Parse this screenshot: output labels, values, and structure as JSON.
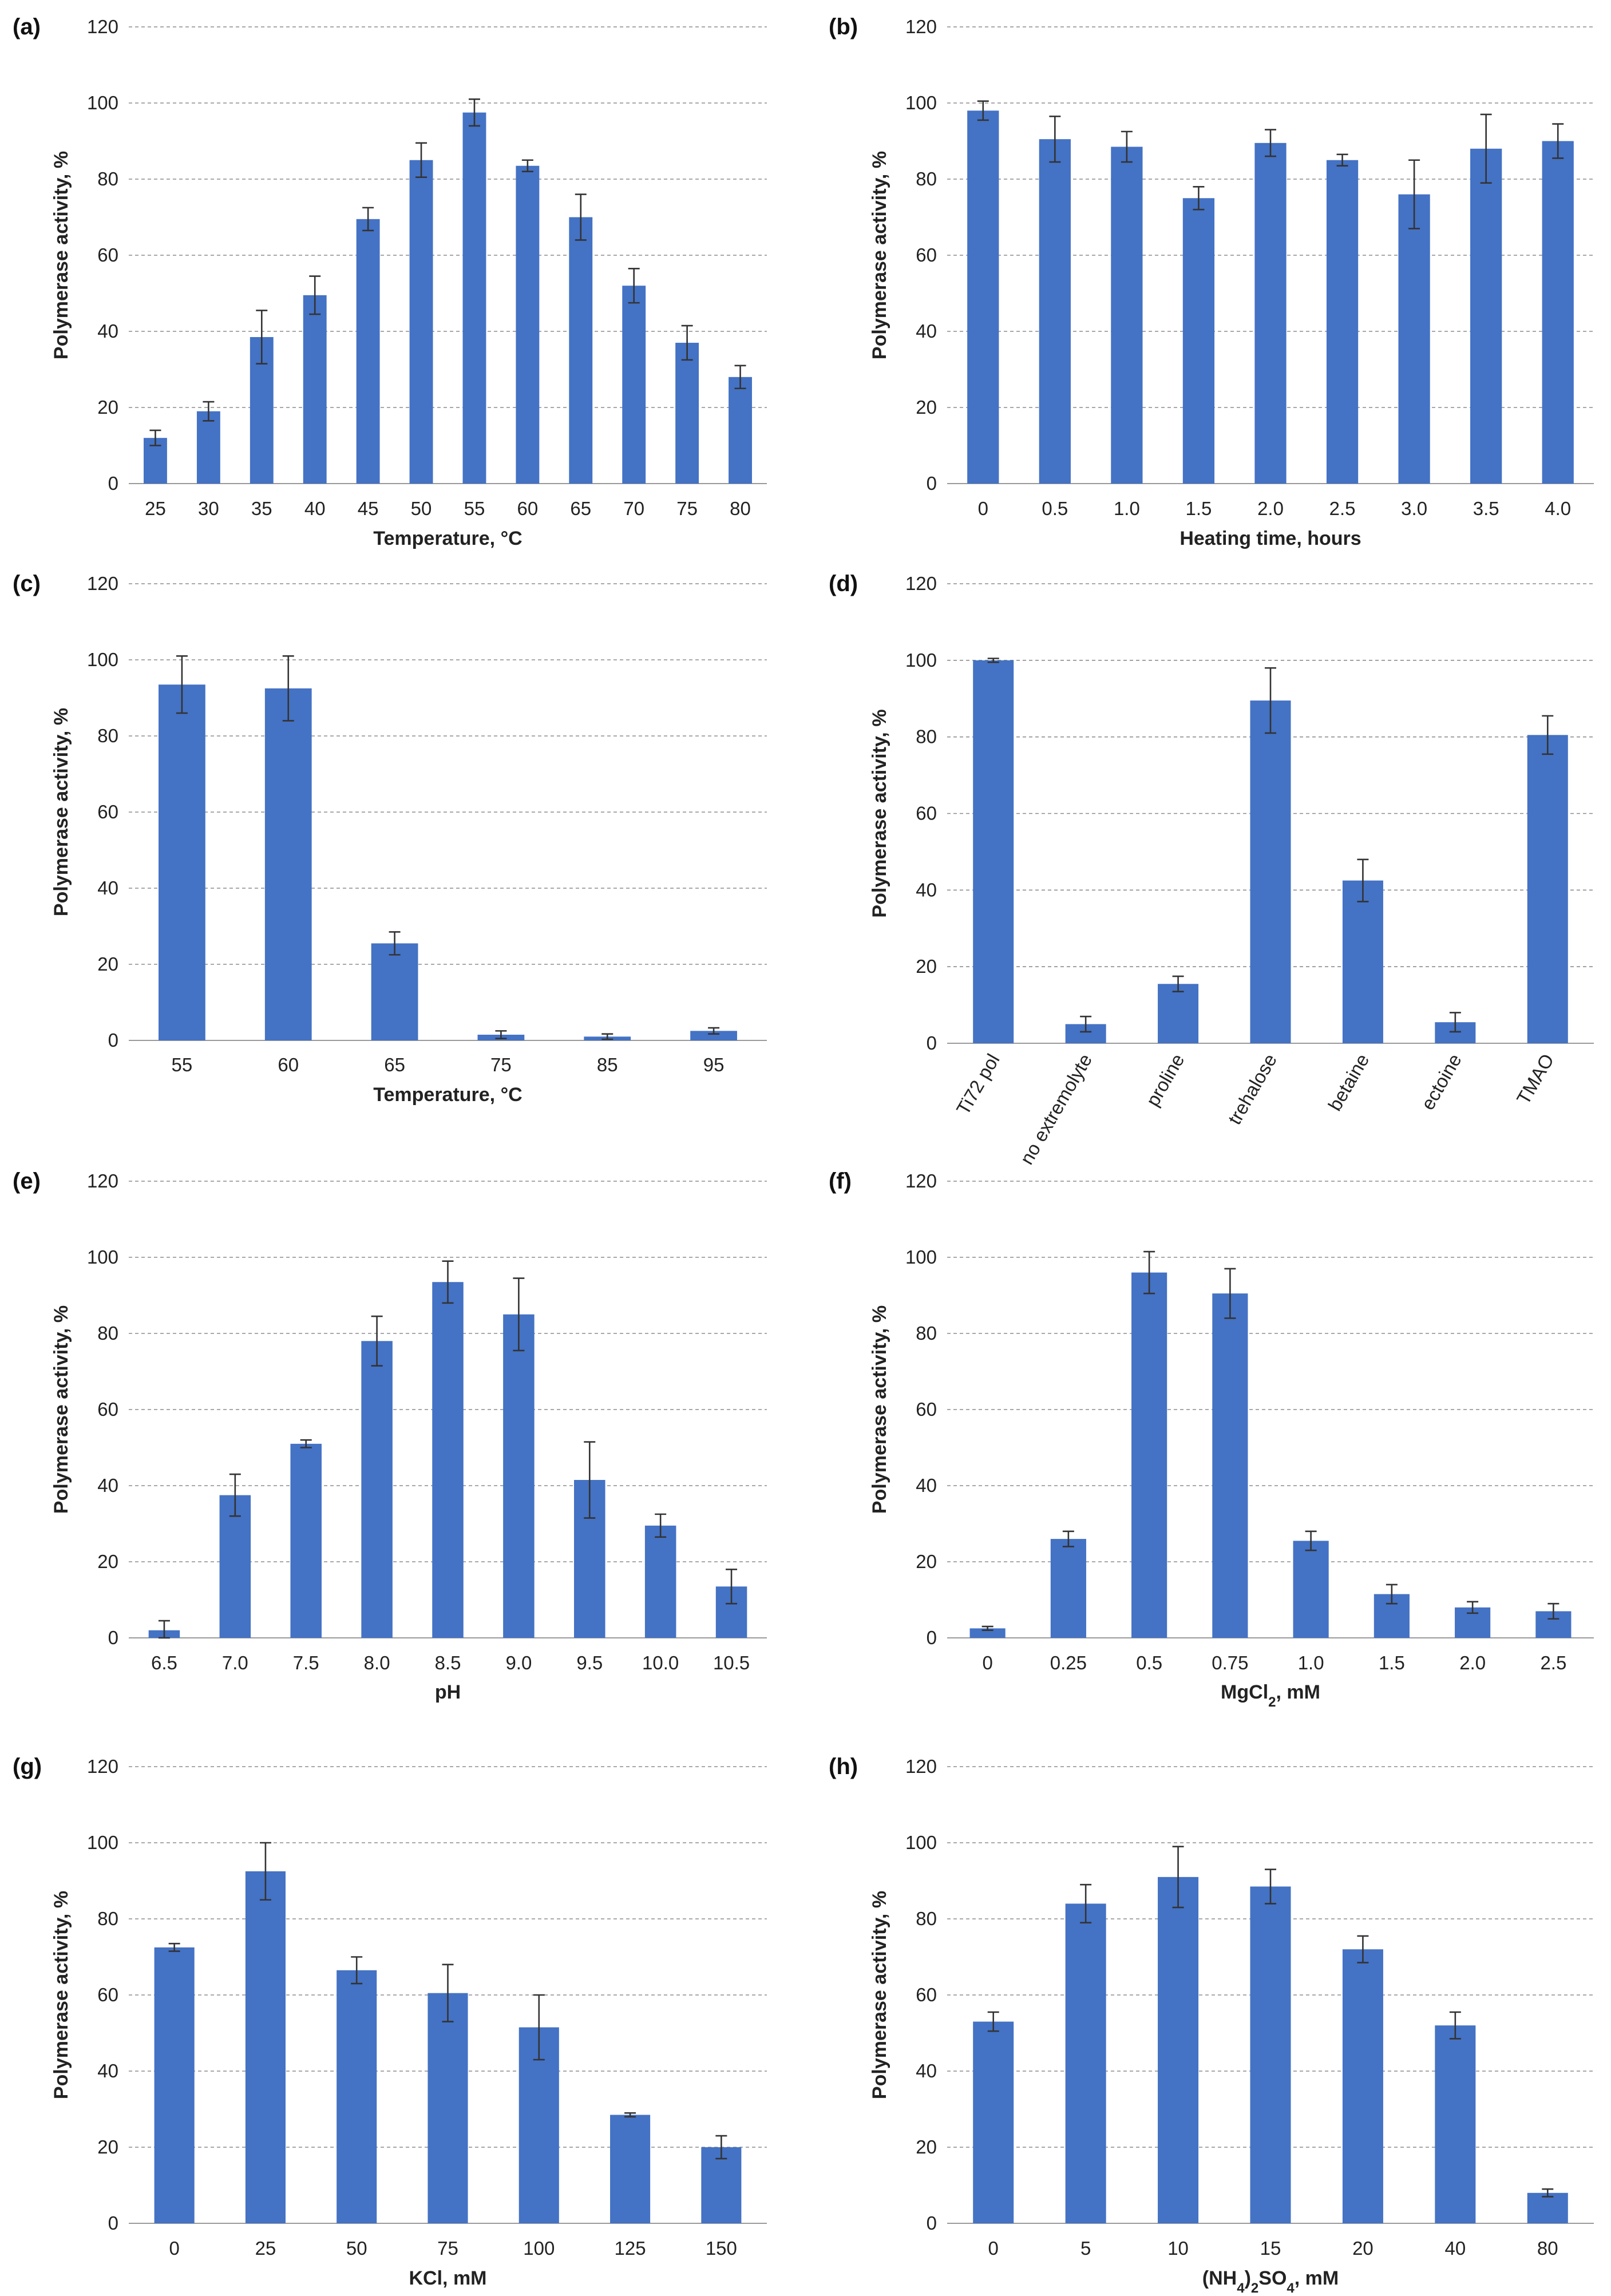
{
  "colors": {
    "bar": "#4472c4",
    "error": "#333333",
    "grid": "#8c8c8c"
  },
  "chart_data": [
    {
      "panel": "(a)",
      "type": "bar",
      "categories": [
        "25",
        "30",
        "35",
        "40",
        "45",
        "50",
        "55",
        "60",
        "65",
        "70",
        "75",
        "80"
      ],
      "values": [
        12,
        19,
        38.5,
        49.5,
        69.5,
        85,
        97.5,
        83.5,
        70,
        52,
        37,
        28
      ],
      "errors": [
        2,
        2.5,
        7,
        5,
        3,
        4.5,
        3.5,
        1.5,
        6,
        4.5,
        4.5,
        3
      ],
      "xlabel": "Temperature, °C",
      "ylabel": "Polymerase activity, %",
      "yticks": [
        "0",
        "20",
        "40",
        "60",
        "80",
        "100",
        "120"
      ],
      "ylim": [
        0,
        120
      ],
      "grid": true
    },
    {
      "panel": "(b)",
      "type": "bar",
      "categories": [
        "0",
        "0.5",
        "1.0",
        "1.5",
        "2.0",
        "2.5",
        "3.0",
        "3.5",
        "4.0"
      ],
      "values": [
        98,
        90.5,
        88.5,
        75,
        89.5,
        85,
        76,
        88,
        90
      ],
      "errors": [
        2.5,
        6,
        4,
        3,
        3.5,
        1.5,
        9,
        9,
        4.5
      ],
      "xlabel": "Heating time, hours",
      "ylabel": "Polymerase activity, %",
      "yticks": [
        "0",
        "20",
        "40",
        "60",
        "80",
        "100",
        "120"
      ],
      "ylim": [
        0,
        120
      ],
      "grid": true
    },
    {
      "panel": "(c)",
      "type": "bar",
      "categories": [
        "55",
        "60",
        "65",
        "75",
        "85",
        "95"
      ],
      "values": [
        93.5,
        92.5,
        25.5,
        1.5,
        1,
        2.5
      ],
      "errors": [
        7.5,
        8.5,
        3,
        1,
        0.7,
        0.8
      ],
      "xlabel": "Temperature, °C",
      "ylabel": "Polymerase activity, %",
      "yticks": [
        "0",
        "20",
        "40",
        "60",
        "80",
        "100",
        "120"
      ],
      "ylim": [
        0,
        120
      ],
      "grid": true
    },
    {
      "panel": "(d)",
      "type": "bar",
      "categories": [
        "Ti72 pol",
        "no extremolyte",
        "proline",
        "trehalose",
        "betaine",
        "ectoine",
        "TMAO"
      ],
      "values": [
        100,
        5,
        15.5,
        89.5,
        42.5,
        5.5,
        80.5
      ],
      "errors": [
        0.5,
        2,
        2,
        8.5,
        5.5,
        2.5,
        5
      ],
      "xlabel": "",
      "ylabel": "Polymerase activity, %",
      "yticks": [
        "0",
        "20",
        "40",
        "60",
        "80",
        "100",
        "120"
      ],
      "ylim": [
        0,
        120
      ],
      "grid": true
    },
    {
      "panel": "(e)",
      "type": "bar",
      "categories": [
        "6.5",
        "7.0",
        "7.5",
        "8.0",
        "8.5",
        "9.0",
        "9.5",
        "10.0",
        "10.5"
      ],
      "values": [
        2,
        37.5,
        51,
        78,
        93.5,
        85,
        41.5,
        29.5,
        13.5
      ],
      "errors": [
        2.5,
        5.5,
        1,
        6.5,
        5.5,
        9.5,
        10,
        3,
        4.5
      ],
      "xlabel": "pH",
      "ylabel": "Polymerase activity, %",
      "yticks": [
        "0",
        "20",
        "40",
        "60",
        "80",
        "100",
        "120"
      ],
      "ylim": [
        0,
        120
      ],
      "grid": true
    },
    {
      "panel": "(f)",
      "type": "bar",
      "categories": [
        "0",
        "0.25",
        "0.5",
        "0.75",
        "1.0",
        "1.5",
        "2.0",
        "2.5"
      ],
      "values": [
        2.5,
        26,
        96,
        90.5,
        25.5,
        11.5,
        8,
        7
      ],
      "errors": [
        0.5,
        2,
        5.5,
        6.5,
        2.5,
        2.5,
        1.5,
        2
      ],
      "xlabel": "MgCl",
      "xlabel_sub": "2",
      "xlabel_tail": ", mM",
      "ylabel": "Polymerase activity, %",
      "yticks": [
        "0",
        "20",
        "40",
        "60",
        "80",
        "100",
        "120"
      ],
      "ylim": [
        0,
        120
      ],
      "grid": true
    },
    {
      "panel": "(g)",
      "type": "bar",
      "categories": [
        "0",
        "25",
        "50",
        "75",
        "100",
        "125",
        "150"
      ],
      "values": [
        72.5,
        92.5,
        66.5,
        60.5,
        51.5,
        28.5,
        20
      ],
      "errors": [
        1,
        7.5,
        3.5,
        7.5,
        8.5,
        0.5,
        3
      ],
      "xlabel": "KCl, mM",
      "ylabel": "Polymerase activity, %",
      "yticks": [
        "0",
        "20",
        "40",
        "60",
        "80",
        "100",
        "120"
      ],
      "ylim": [
        0,
        120
      ],
      "grid": true
    },
    {
      "panel": "(h)",
      "type": "bar",
      "categories": [
        "0",
        "5",
        "10",
        "15",
        "20",
        "40",
        "80"
      ],
      "values": [
        53,
        84,
        91,
        88.5,
        72,
        52,
        8
      ],
      "errors": [
        2.5,
        5,
        8,
        4.5,
        3.5,
        3.5,
        1
      ],
      "xlabel": "(NH",
      "xlabel_sub": "4",
      "xlabel_mid": ")",
      "xlabel_sub2": "2",
      "xlabel_tail": "SO",
      "xlabel_sub3": "4",
      "xlabel_end": ", mM",
      "ylabel": "Polymerase activity, %",
      "yticks": [
        "0",
        "20",
        "40",
        "60",
        "80",
        "100",
        "120"
      ],
      "ylim": [
        0,
        120
      ],
      "grid": true
    }
  ]
}
